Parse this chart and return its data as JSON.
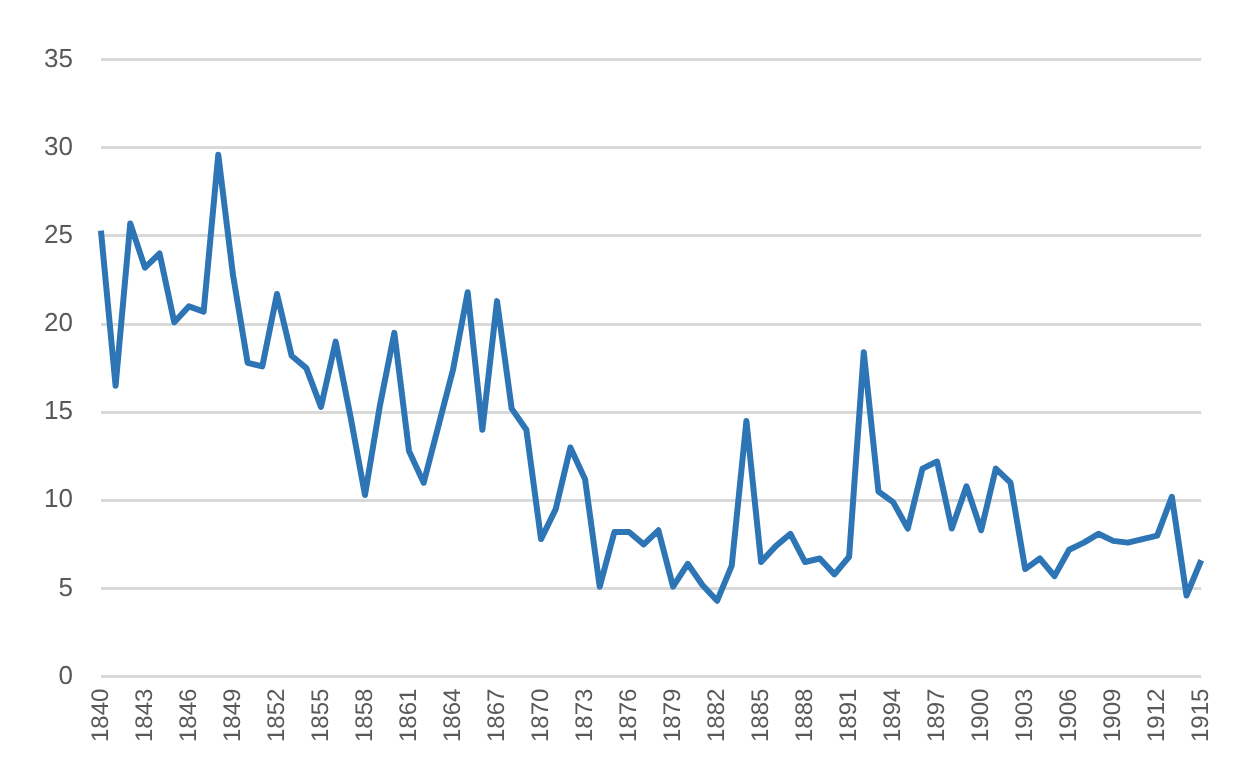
{
  "chart_data": {
    "type": "line",
    "categories": [
      "1840",
      null,
      null,
      "1843",
      null,
      null,
      "1846",
      null,
      null,
      "1849",
      null,
      null,
      "1852",
      null,
      null,
      "1855",
      null,
      null,
      "1858",
      null,
      null,
      "1861",
      null,
      null,
      "1864",
      null,
      null,
      "1867",
      null,
      null,
      "1870",
      null,
      null,
      "1873",
      null,
      null,
      "1876",
      null,
      null,
      "1879",
      null,
      null,
      "1882",
      null,
      null,
      "1885",
      null,
      null,
      "1888",
      null,
      null,
      "1891",
      null,
      null,
      "1894",
      null,
      null,
      "1897",
      null,
      null,
      "1900",
      null,
      null,
      "1903",
      null,
      null,
      "1906",
      null,
      null,
      "1909",
      null,
      null,
      "1912",
      null,
      null,
      "1915"
    ],
    "series": [
      {
        "color": "#2e75b6",
        "values": [
          25.3,
          16.5,
          25.7,
          23.2,
          24.0,
          20.1,
          21.0,
          20.7,
          29.6,
          22.8,
          17.8,
          17.6,
          21.7,
          18.2,
          17.5,
          15.3,
          19.0,
          14.8,
          10.3,
          15.3,
          19.5,
          12.8,
          11.0,
          14.2,
          17.4,
          21.8,
          14.0,
          21.3,
          15.2,
          14.0,
          7.8,
          9.5,
          13.0,
          11.2,
          5.1,
          8.2,
          8.2,
          7.5,
          8.3,
          5.1,
          6.4,
          5.2,
          4.3,
          6.3,
          14.5,
          6.5,
          7.4,
          8.1,
          6.5,
          6.7,
          5.8,
          6.8,
          18.4,
          10.5,
          9.9,
          8.4,
          11.8,
          12.2,
          8.4,
          10.8,
          8.3,
          11.8,
          11.0,
          6.1,
          6.7,
          5.7,
          7.2,
          7.6,
          8.1,
          7.7,
          7.6,
          7.8,
          8.0,
          10.2,
          4.6,
          6.6
        ]
      }
    ],
    "ylim": [
      0,
      35
    ],
    "yticks": [
      0,
      5,
      10,
      15,
      20,
      25,
      30,
      35
    ],
    "grid": "y",
    "legend": false,
    "marker": "none",
    "line_style": "solid"
  }
}
